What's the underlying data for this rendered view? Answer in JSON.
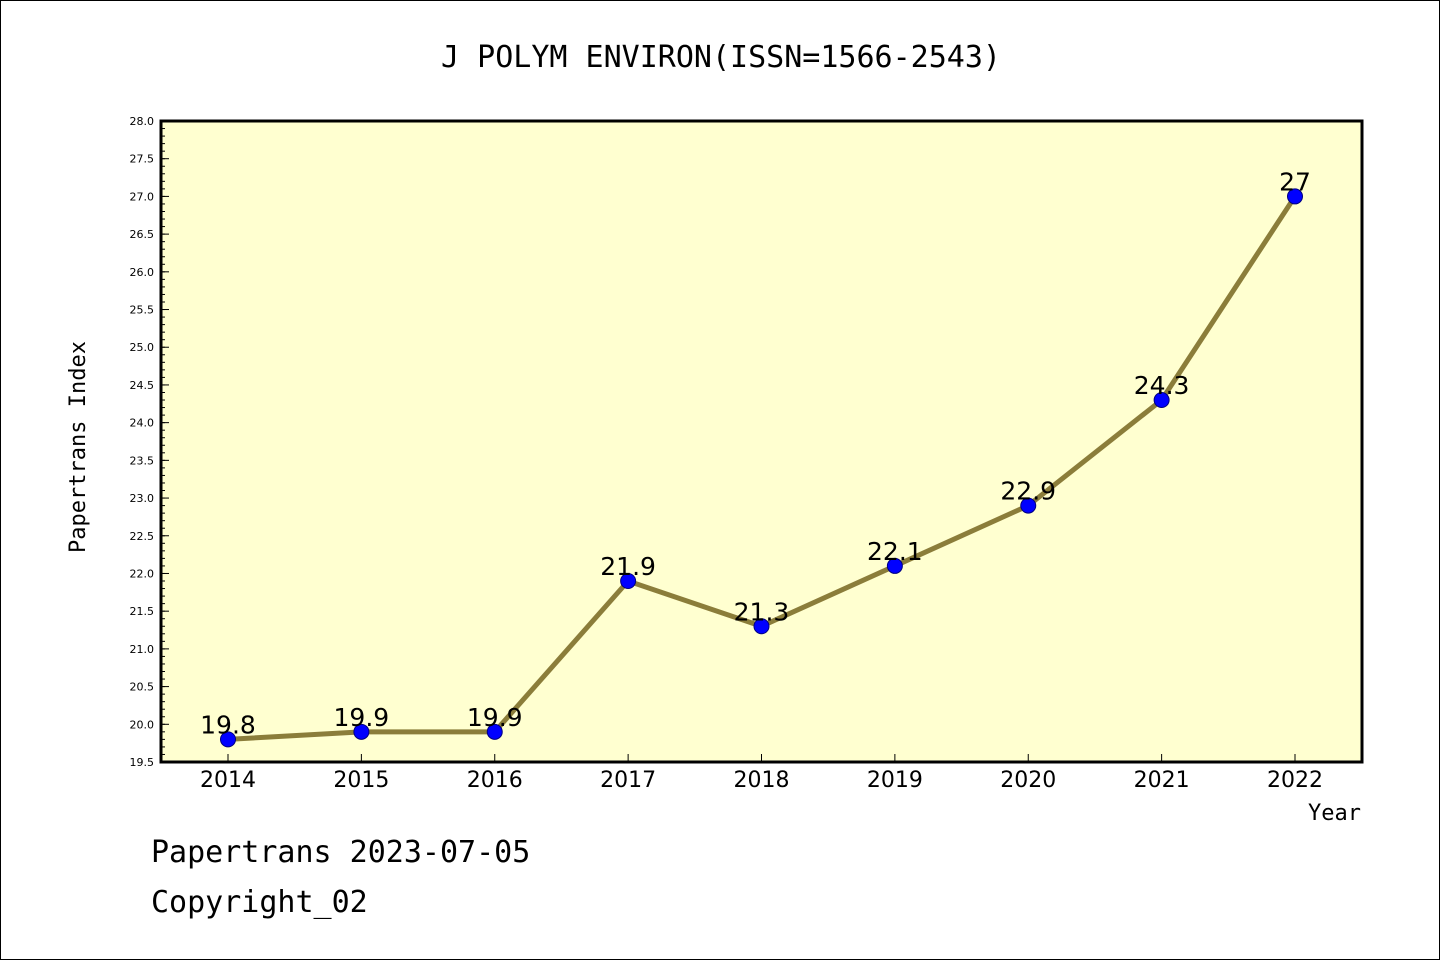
{
  "footer": {
    "line1": "Papertrans 2023-07-05",
    "line2": "Copyright_02"
  },
  "chart_data": {
    "type": "line",
    "title": "J POLYM ENVIRON(ISSN=1566-2543)",
    "xlabel": "Year",
    "ylabel": "Papertrans Index",
    "categories": [
      "2014",
      "2015",
      "2016",
      "2017",
      "2018",
      "2019",
      "2020",
      "2021",
      "2022"
    ],
    "series": [
      {
        "values": [
          19.8,
          19.9,
          19.9,
          21.9,
          21.3,
          22.1,
          22.9,
          24.3,
          27
        ],
        "data_labels": [
          "19.8",
          "19.9",
          "19.9",
          "21.9",
          "21.3",
          "22.1",
          "22.9",
          "24.3",
          "27"
        ]
      }
    ],
    "ylim": [
      19.5,
      28.0
    ],
    "yticks": [
      "19.5",
      "20.0",
      "20.5",
      "21.0",
      "21.5",
      "22.0",
      "22.5",
      "23.0",
      "23.5",
      "24.0",
      "24.5",
      "25.0",
      "25.5",
      "26.0",
      "26.5",
      "27.0",
      "27.5",
      "28.0"
    ],
    "grid": false,
    "legend": "none",
    "colors": {
      "plot_background": "#ffffd0",
      "line": "#8b7d3a",
      "marker_fill": "#0000ff",
      "marker_edge": "#000080"
    }
  }
}
